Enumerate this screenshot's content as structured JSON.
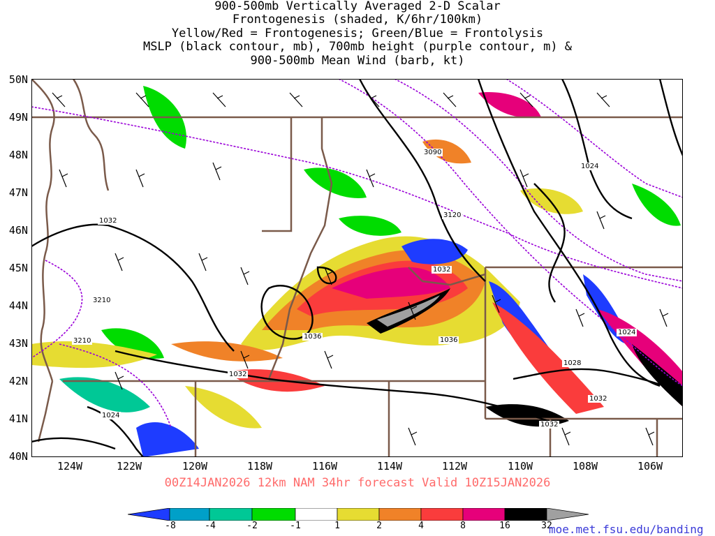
{
  "title": {
    "line1": "900-500mb Vertically Averaged 2-D Scalar",
    "line2": "Frontogenesis (shaded, K/6hr/100km)",
    "line3": "Yellow/Red = Frontogenesis;  Green/Blue = Frontolysis",
    "line4": "MSLP (black contour, mb), 700mb height (purple contour, m) &",
    "line5": "900-500mb Mean Wind (barb, kt)"
  },
  "lat_labels": [
    "50N",
    "49N",
    "48N",
    "47N",
    "46N",
    "45N",
    "44N",
    "43N",
    "42N",
    "41N",
    "40N"
  ],
  "lon_labels": [
    "124W",
    "122W",
    "120W",
    "118W",
    "116W",
    "114W",
    "112W",
    "110W",
    "108W",
    "106W"
  ],
  "forecast_line": "00Z14JAN2026 12km NAM 34hr forecast Valid 10Z15JAN2026",
  "colorbar": {
    "labels": [
      "-8",
      "-4",
      "-2",
      "-1",
      "1",
      "2",
      "4",
      "8",
      "16",
      "32"
    ],
    "colors": [
      "#1e3cff",
      "#00a0c8",
      "#00c896",
      "#00dc00",
      "#ffffff",
      "#e6dc32",
      "#f08228",
      "#fa3c3c",
      "#e6007a",
      "#000000",
      "#a0a0a0"
    ]
  },
  "contour_labels": {
    "height": [
      "3090",
      "3120",
      "3210",
      "3210"
    ],
    "mslp": [
      "1024",
      "1032",
      "1032",
      "1036",
      "1036",
      "1032",
      "1024",
      "1028",
      "1032",
      "1024",
      "1032"
    ]
  },
  "credit": "moe.met.fsu.edu/banding"
}
